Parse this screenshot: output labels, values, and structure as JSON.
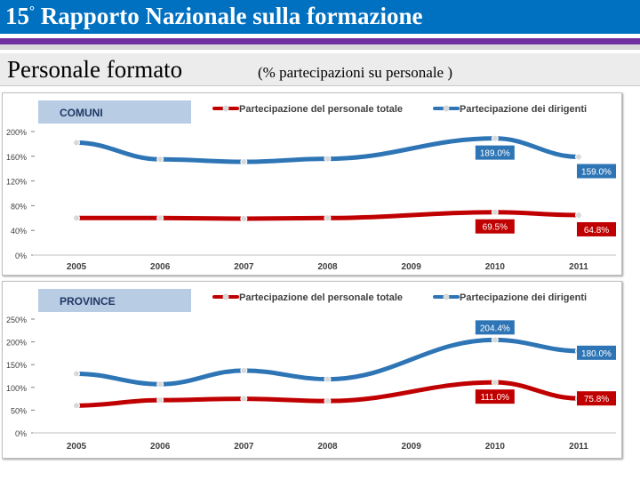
{
  "header": {
    "title_prefix": "15",
    "title_degree": "°",
    "title_rest": " Rapporto Nazionale sulla formazione"
  },
  "subtitle": {
    "main": "Personale formato",
    "sub": "(% partecipazioni su personale )"
  },
  "colors": {
    "header_blue": "#0070c0",
    "purple": "#7030a0",
    "series_red": "#c00000",
    "series_blue": "#2e75b6",
    "label_box": "#b8cce4"
  },
  "chart_data": [
    {
      "type": "line",
      "title": "COMUNI",
      "categories": [
        "2005",
        "2006",
        "2007",
        "2008",
        "2009",
        "2010",
        "2011"
      ],
      "y_ticks": [
        "200%",
        "160%",
        "120%",
        "80%",
        "40%",
        "0%"
      ],
      "ylim": [
        0,
        200
      ],
      "series": [
        {
          "name": "Partecipazione del personale totale",
          "color": "#c00000",
          "values": [
            60,
            60,
            59,
            60,
            null,
            69.5,
            64.8
          ]
        },
        {
          "name": "Partecipazione dei dirigenti",
          "color": "#2e75b6",
          "values": [
            182,
            155,
            151,
            156,
            null,
            189.0,
            159.0
          ]
        }
      ],
      "data_labels": [
        {
          "series": 1,
          "index": 5,
          "text": "189.0%"
        },
        {
          "series": 1,
          "index": 6,
          "text": "159.0%"
        },
        {
          "series": 0,
          "index": 5,
          "text": "69.5%"
        },
        {
          "series": 0,
          "index": 6,
          "text": "64.8%"
        }
      ]
    },
    {
      "type": "line",
      "title": "PROVINCE",
      "categories": [
        "2005",
        "2006",
        "2007",
        "2008",
        "2009",
        "2010",
        "2011"
      ],
      "y_ticks": [
        "250%",
        "200%",
        "150%",
        "100%",
        "50%",
        "0%"
      ],
      "ylim": [
        0,
        250
      ],
      "series": [
        {
          "name": "Partecipazione del personale totale",
          "color": "#c00000",
          "values": [
            60,
            72,
            75,
            70,
            null,
            111.0,
            75.8
          ]
        },
        {
          "name": "Partecipazione dei dirigenti",
          "color": "#2e75b6",
          "values": [
            130,
            107,
            137,
            118,
            null,
            204.4,
            180.0
          ]
        }
      ],
      "data_labels": [
        {
          "series": 1,
          "index": 5,
          "text": "204.4%"
        },
        {
          "series": 1,
          "index": 6,
          "text": "180.0%"
        },
        {
          "series": 0,
          "index": 5,
          "text": "111.0%"
        },
        {
          "series": 0,
          "index": 6,
          "text": "75.8%"
        }
      ]
    }
  ]
}
